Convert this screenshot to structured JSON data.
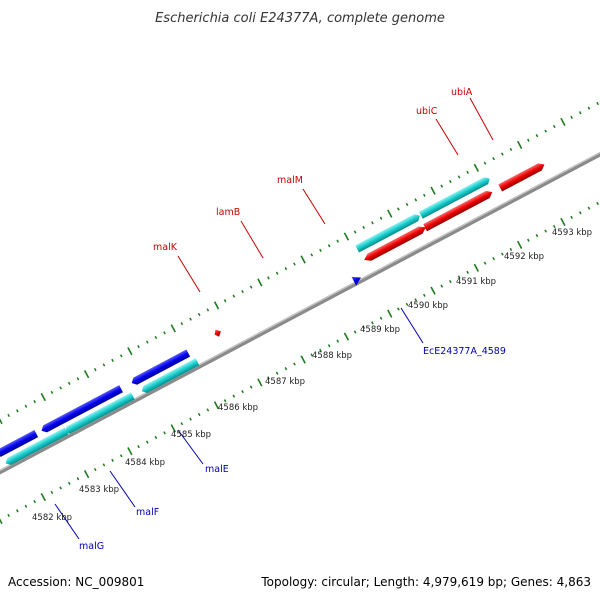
{
  "title": "Escherichia coli E24377A, complete genome",
  "footer": {
    "accession": "Accession: NC_009801",
    "summary": "Topology: circular; Length: 4,979,619 bp; Genes: 4,863"
  },
  "colors": {
    "backbone": "#888888",
    "forward_cds": "#e8000b",
    "reverse_cds": "#0000e8",
    "rna": "#00c8c8",
    "other": "#7a6ad0",
    "ticks": "#1e7a1e",
    "forward_label": "#c80000",
    "reverse_label": "#0000b4"
  },
  "ticks": [
    {
      "label": "4582 kbp"
    },
    {
      "label": "4583 kbp"
    },
    {
      "label": "4584 kbp"
    },
    {
      "label": "4585 kbp"
    },
    {
      "label": "4586 kbp"
    },
    {
      "label": "4587 kbp"
    },
    {
      "label": "4588 kbp"
    },
    {
      "label": "4589 kbp"
    },
    {
      "label": "4590 kbp"
    },
    {
      "label": "4591 kbp"
    },
    {
      "label": "4592 kbp"
    },
    {
      "label": "4593 kbp"
    }
  ],
  "gene_labels": {
    "forward": [
      "malK",
      "lamB",
      "malM",
      "ubiC",
      "ubiA"
    ],
    "reverse": [
      "malG",
      "malF",
      "malE",
      "EcE24377A_4589"
    ]
  }
}
